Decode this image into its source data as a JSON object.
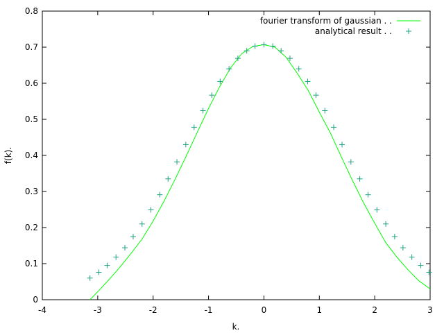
{
  "chart_data": {
    "type": "line",
    "title": "",
    "xlabel": "k.",
    "ylabel": "f(k).",
    "xlim": [
      -4,
      3
    ],
    "ylim": [
      0,
      0.8
    ],
    "xticks": [
      -4,
      -3,
      -2,
      -1,
      0,
      1,
      2,
      3
    ],
    "yticks": [
      0,
      0.1,
      0.2,
      0.3,
      0.4,
      0.5,
      0.6,
      0.7,
      0.8
    ],
    "xtick_labels": [
      "-4",
      "-3",
      "-2",
      "-1",
      "0",
      "1",
      "2",
      "3"
    ],
    "ytick_labels": [
      "0",
      "0.1",
      "0.2",
      "0.3",
      "0.4",
      "0.5",
      "0.6",
      "0.7",
      "0.8"
    ],
    "grid": false,
    "legend_position": "top-right",
    "series": [
      {
        "name": "fourier transform of gaussian . .",
        "style": "line",
        "color": "#00ff00",
        "x": [
          -3.14,
          -3.0,
          -2.8,
          -2.6,
          -2.4,
          -2.2,
          -2.0,
          -1.8,
          -1.6,
          -1.4,
          -1.2,
          -1.0,
          -0.8,
          -0.6,
          -0.4,
          -0.2,
          0.0,
          0.2,
          0.4,
          0.6,
          0.8,
          1.0,
          1.2,
          1.4,
          1.6,
          1.8,
          2.0,
          2.2,
          2.4,
          2.6,
          2.8,
          3.0
        ],
        "y": [
          0.0,
          0.022,
          0.055,
          0.09,
          0.128,
          0.168,
          0.218,
          0.274,
          0.335,
          0.399,
          0.465,
          0.53,
          0.59,
          0.643,
          0.682,
          0.702,
          0.707,
          0.7,
          0.672,
          0.628,
          0.58,
          0.52,
          0.462,
          0.395,
          0.33,
          0.268,
          0.212,
          0.158,
          0.118,
          0.083,
          0.052,
          0.03
        ]
      },
      {
        "name": "analytical result . .",
        "style": "points",
        "marker": "plus",
        "color": "#20a080",
        "x": [
          -3.14,
          -2.98,
          -2.83,
          -2.67,
          -2.51,
          -2.36,
          -2.2,
          -2.04,
          -1.88,
          -1.73,
          -1.57,
          -1.41,
          -1.26,
          -1.1,
          -0.94,
          -0.79,
          -0.63,
          -0.47,
          -0.31,
          -0.16,
          0.0,
          0.16,
          0.31,
          0.47,
          0.63,
          0.79,
          0.94,
          1.1,
          1.26,
          1.41,
          1.57,
          1.73,
          1.88,
          2.04,
          2.2,
          2.36,
          2.51,
          2.67,
          2.83,
          2.98
        ],
        "y": [
          0.06,
          0.076,
          0.095,
          0.118,
          0.144,
          0.175,
          0.21,
          0.249,
          0.291,
          0.335,
          0.382,
          0.43,
          0.478,
          0.524,
          0.567,
          0.605,
          0.64,
          0.669,
          0.69,
          0.703,
          0.707,
          0.703,
          0.69,
          0.669,
          0.64,
          0.605,
          0.567,
          0.524,
          0.478,
          0.43,
          0.382,
          0.335,
          0.291,
          0.249,
          0.21,
          0.175,
          0.144,
          0.118,
          0.095,
          0.076
        ]
      }
    ]
  }
}
